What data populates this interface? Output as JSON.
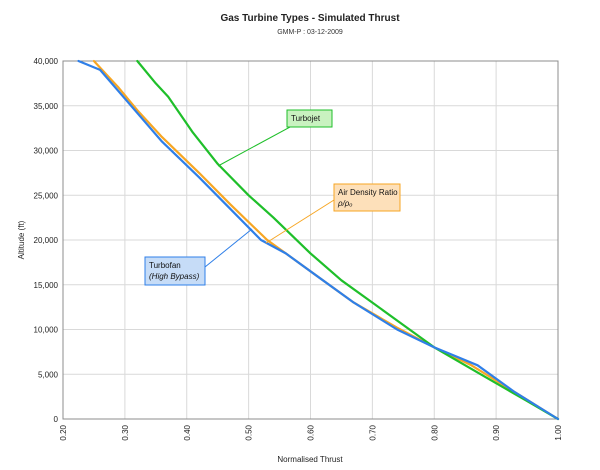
{
  "chart_data": {
    "type": "line",
    "title": "Gas Turbine Types - Simulated Thrust",
    "subtitle": "GMM-P : 03-12-2009",
    "xlabel": "Normalised Thrust",
    "ylabel": "Altitude (ft)",
    "xlim": [
      0.2,
      1.0
    ],
    "ylim": [
      0,
      40000
    ],
    "x_ticks": [
      "0.20",
      "0.30",
      "0.40",
      "0.50",
      "0.60",
      "0.70",
      "0.80",
      "0.90",
      "1.00"
    ],
    "y_ticks": [
      "0",
      "5,000",
      "10,000",
      "15,000",
      "20,000",
      "25,000",
      "30,000",
      "35,000",
      "40,000"
    ],
    "grid": true,
    "series": [
      {
        "name": "Air Density Ratio",
        "color": "#f7a623",
        "points": [
          [
            1.0,
            0
          ],
          [
            0.93,
            3000
          ],
          [
            0.86,
            6000
          ],
          [
            0.8,
            8000
          ],
          [
            0.74,
            10200
          ],
          [
            0.67,
            13000
          ],
          [
            0.61,
            16000
          ],
          [
            0.56,
            18500
          ],
          [
            0.53,
            20000
          ],
          [
            0.47,
            24000
          ],
          [
            0.42,
            27500
          ],
          [
            0.36,
            31500
          ],
          [
            0.32,
            34500
          ],
          [
            0.29,
            37000
          ],
          [
            0.25,
            40000
          ]
        ]
      },
      {
        "name": "Turbojet",
        "color": "#1fbf2a",
        "points": [
          [
            1.0,
            0
          ],
          [
            0.95,
            2000
          ],
          [
            0.9,
            4000
          ],
          [
            0.85,
            6000
          ],
          [
            0.8,
            8000
          ],
          [
            0.75,
            10500
          ],
          [
            0.7,
            13000
          ],
          [
            0.65,
            15500
          ],
          [
            0.6,
            18500
          ],
          [
            0.54,
            22500
          ],
          [
            0.5,
            25000
          ],
          [
            0.45,
            28500
          ],
          [
            0.41,
            32000
          ],
          [
            0.37,
            36000
          ],
          [
            0.35,
            37500
          ],
          [
            0.32,
            40000
          ]
        ]
      },
      {
        "name": "Turbofan",
        "color": "#2f7fe8",
        "points": [
          [
            1.0,
            0
          ],
          [
            0.93,
            3000
          ],
          [
            0.87,
            6000
          ],
          [
            0.8,
            8000
          ],
          [
            0.74,
            10000
          ],
          [
            0.67,
            13000
          ],
          [
            0.61,
            16000
          ],
          [
            0.56,
            18500
          ],
          [
            0.52,
            20000
          ],
          [
            0.47,
            23500
          ],
          [
            0.42,
            27000
          ],
          [
            0.36,
            31000
          ],
          [
            0.31,
            35000
          ],
          [
            0.26,
            39000
          ],
          [
            0.225,
            40000
          ]
        ]
      }
    ],
    "annotations": [
      {
        "series": "Turbojet",
        "lines": [
          "Turbojet"
        ],
        "bg": "#c9f2c0",
        "border": "#1fbf2a"
      },
      {
        "series": "Air Density Ratio",
        "lines": [
          "Air Density Ratio",
          "ρ/ρₒ"
        ],
        "bg": "#fde0ba",
        "border": "#f7a623"
      },
      {
        "series": "Turbofan",
        "lines": [
          "Turbofan",
          "(High Bypass)"
        ],
        "bg": "#c6dcf7",
        "border": "#2f7fe8"
      }
    ]
  }
}
